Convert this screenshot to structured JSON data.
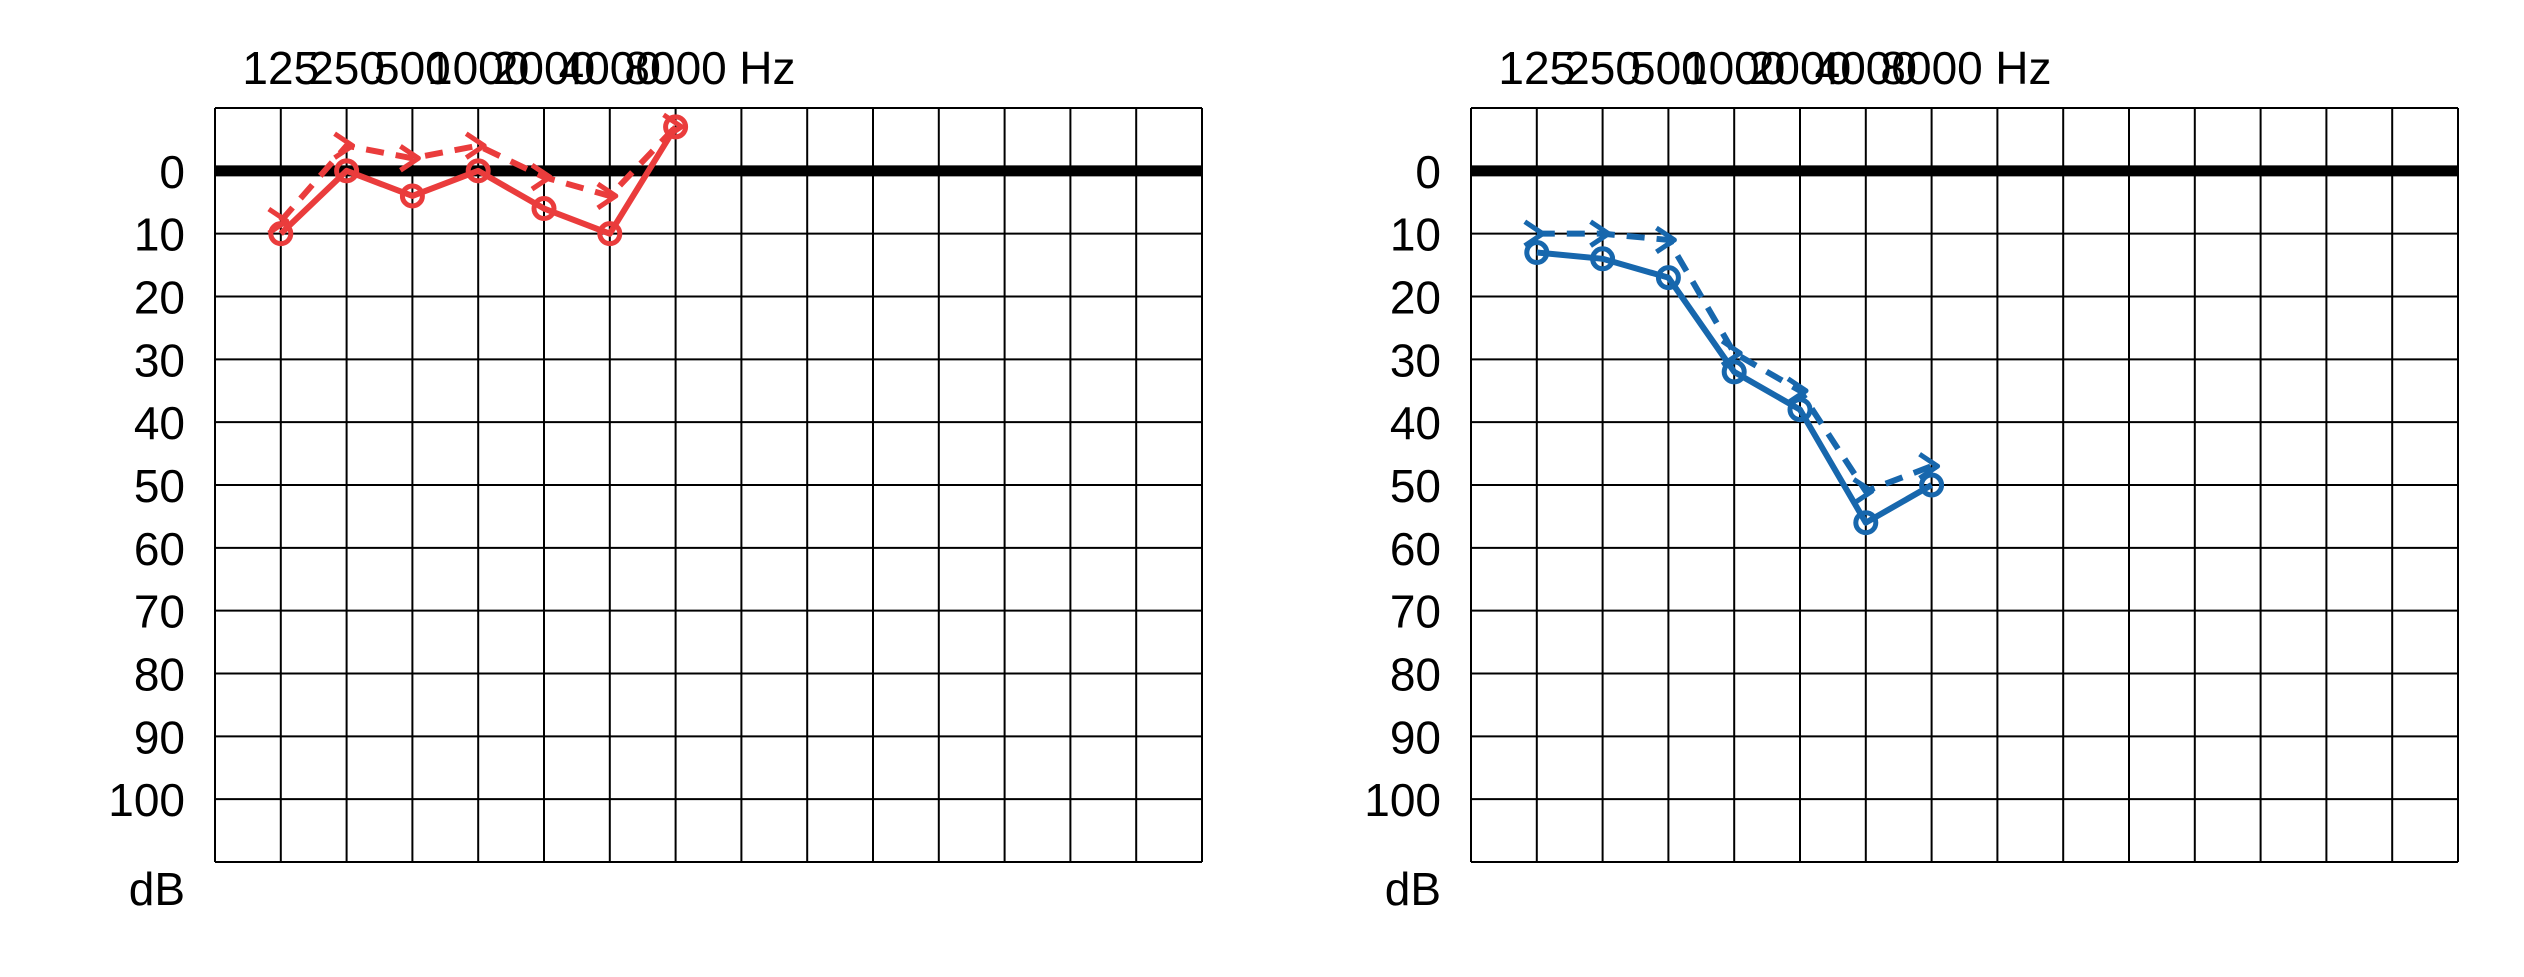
{
  "chart_data": [
    {
      "type": "line",
      "color": "#ea3c3c",
      "x": [
        "125",
        "250",
        "500",
        "1000",
        "2000",
        "4000",
        "8000"
      ],
      "x_unit": "Hz",
      "y_unit": "dB",
      "y_ticks": [
        "0",
        "10",
        "20",
        "30",
        "40",
        "50",
        "60",
        "70",
        "80",
        "90",
        "100"
      ],
      "ylim": [
        -10,
        110
      ],
      "y_inverted": true,
      "reference_line": 0,
      "grid": true,
      "series": [
        {
          "style": "solid",
          "marker": "circle",
          "values": [
            10,
            0,
            4,
            0,
            6,
            10,
            -7
          ]
        },
        {
          "style": "dashed",
          "marker": "arrow",
          "values": [
            8,
            -4,
            -2,
            -4,
            1,
            4,
            -7
          ]
        }
      ]
    },
    {
      "type": "line",
      "color": "#1767ad",
      "x": [
        "125",
        "250",
        "500",
        "1000",
        "2000",
        "4000",
        "8000"
      ],
      "x_unit": "Hz",
      "y_unit": "dB",
      "y_ticks": [
        "0",
        "10",
        "20",
        "30",
        "40",
        "50",
        "60",
        "70",
        "80",
        "90",
        "100"
      ],
      "ylim": [
        -10,
        110
      ],
      "y_inverted": true,
      "reference_line": 0,
      "grid": true,
      "series": [
        {
          "style": "solid",
          "marker": "circle",
          "values": [
            13,
            14,
            17,
            32,
            38,
            56,
            50
          ]
        },
        {
          "style": "dashed",
          "marker": "arrow",
          "values": [
            10,
            10,
            11,
            29,
            35,
            51,
            47
          ]
        }
      ]
    }
  ]
}
